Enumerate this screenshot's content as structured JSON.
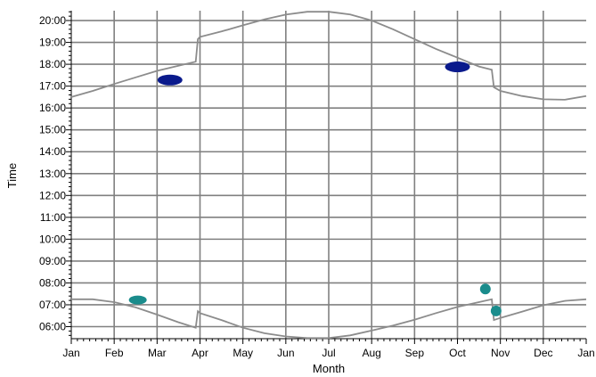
{
  "chart_data": {
    "type": "line",
    "title": "",
    "xlabel": "Month",
    "ylabel": "Time",
    "x_ticks": [
      "Jan",
      "Feb",
      "Mar",
      "Apr",
      "May",
      "Jun",
      "Jul",
      "Aug",
      "Sep",
      "Oct",
      "Nov",
      "Dec",
      "Jan"
    ],
    "y_ticks": [
      "06:00",
      "07:00",
      "08:00",
      "09:00",
      "10:00",
      "11:00",
      "12:00",
      "13:00",
      "14:00",
      "15:00",
      "16:00",
      "17:00",
      "18:00",
      "19:00",
      "20:00"
    ],
    "xlim": [
      0,
      12
    ],
    "ylim_hours": [
      5.45,
      20.45
    ],
    "grid": true,
    "legend": "none",
    "colors": {
      "curve": "#8c8c8c",
      "grid": "#808080",
      "marker_evening": "#0a1a8c",
      "marker_morning": "#1a8c8c",
      "axis": "#000000"
    },
    "series": [
      {
        "kind": "curve",
        "x": [
          0.0,
          0.5,
          1.0,
          1.5,
          2.0,
          2.5,
          2.9,
          2.95,
          3.0,
          3.5,
          4.0,
          4.5,
          5.0,
          5.5,
          6.0,
          6.5,
          7.0,
          7.5,
          8.0,
          8.5,
          9.0,
          9.5,
          9.8,
          9.85,
          10.0,
          10.5,
          11.0,
          11.5,
          12.0
        ],
        "y": [
          16.5,
          16.78,
          17.1,
          17.4,
          17.7,
          17.93,
          18.12,
          19.15,
          19.25,
          19.5,
          19.78,
          20.05,
          20.27,
          20.4,
          20.4,
          20.28,
          20.0,
          19.6,
          19.15,
          18.7,
          18.3,
          17.9,
          17.75,
          16.95,
          16.78,
          16.55,
          16.4,
          16.38,
          16.55
        ]
      },
      {
        "kind": "curve",
        "x": [
          0.0,
          0.5,
          1.0,
          1.5,
          2.0,
          2.5,
          2.9,
          2.95,
          3.0,
          3.5,
          4.0,
          4.5,
          5.0,
          5.5,
          6.0,
          6.5,
          7.0,
          7.5,
          8.0,
          8.5,
          9.0,
          9.5,
          9.8,
          9.85,
          10.0,
          10.5,
          11.0,
          11.5,
          12.0
        ],
        "y": [
          7.25,
          7.25,
          7.12,
          6.88,
          6.55,
          6.2,
          5.95,
          6.7,
          6.62,
          6.3,
          5.95,
          5.7,
          5.55,
          5.48,
          5.48,
          5.6,
          5.82,
          6.05,
          6.32,
          6.62,
          6.9,
          7.12,
          7.25,
          6.3,
          6.4,
          6.68,
          6.98,
          7.18,
          7.25
        ]
      },
      {
        "kind": "marker",
        "color_key": "marker_evening",
        "points": [
          {
            "x": 2.3,
            "y": 17.28,
            "size": "large"
          },
          {
            "x": 9.0,
            "y": 17.88,
            "size": "large"
          }
        ]
      },
      {
        "kind": "marker",
        "color_key": "marker_morning",
        "points": [
          {
            "x": 1.55,
            "y": 7.22,
            "size": "medium"
          },
          {
            "x": 9.65,
            "y": 7.72,
            "size": "small"
          },
          {
            "x": 9.9,
            "y": 6.72,
            "size": "small"
          }
        ]
      }
    ]
  }
}
